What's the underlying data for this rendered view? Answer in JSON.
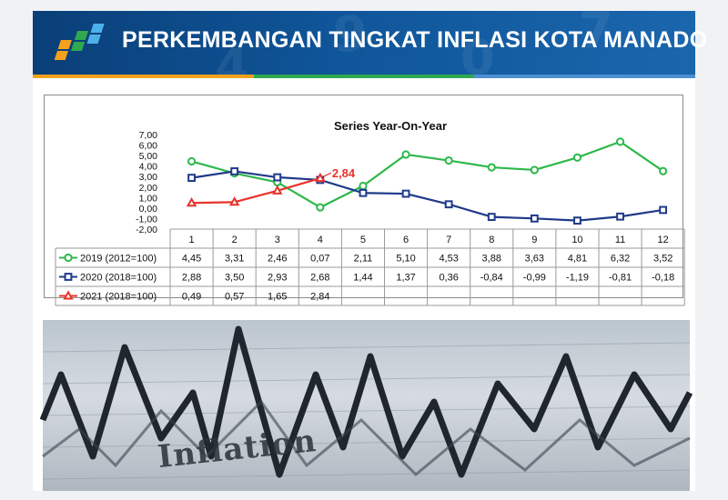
{
  "header": {
    "title": "PERKEMBANGAN TINGKAT INFLASI KOTA MANADO",
    "stripe_colors": [
      "#f5a11c",
      "#2fa84f",
      "#4d8fd1"
    ]
  },
  "chart_data": {
    "type": "line",
    "title": "Series Year-On-Year",
    "categories": [
      "1",
      "2",
      "3",
      "4",
      "5",
      "6",
      "7",
      "8",
      "9",
      "10",
      "11",
      "12"
    ],
    "y_ticks": [
      "7,00",
      "6,00",
      "5,00",
      "4,00",
      "3,00",
      "2,00",
      "1,00",
      "0,00",
      "-1,00",
      "-2,00"
    ],
    "ylim": [
      -2,
      7
    ],
    "grid": false,
    "legend": "table-left",
    "series": [
      {
        "name": "2019 (2012=100)",
        "color": "#2eb84a",
        "marker": "circle",
        "values": [
          4.45,
          3.31,
          2.46,
          0.07,
          2.11,
          5.1,
          4.53,
          3.88,
          3.63,
          4.81,
          6.32,
          3.52
        ],
        "labels": [
          "4,45",
          "3,31",
          "2,46",
          "0,07",
          "2,11",
          "5,10",
          "4,53",
          "3,88",
          "3,63",
          "4,81",
          "6,32",
          "3,52"
        ]
      },
      {
        "name": "2020 (2018=100)",
        "color": "#1f3a8a",
        "marker": "square",
        "values": [
          2.88,
          3.5,
          2.93,
          2.68,
          1.44,
          1.37,
          0.36,
          -0.84,
          -0.99,
          -1.19,
          -0.81,
          -0.18
        ],
        "labels": [
          "2,88",
          "3,50",
          "2,93",
          "2,68",
          "1,44",
          "1,37",
          "0,36",
          "-0,84",
          "-0,99",
          "-1,19",
          "-0,81",
          "-0,18"
        ]
      },
      {
        "name": "2021 (2018=100)",
        "color": "#e8332a",
        "marker": "triangle",
        "values": [
          0.49,
          0.57,
          1.65,
          2.84,
          null,
          null,
          null,
          null,
          null,
          null,
          null,
          null
        ],
        "labels": [
          "0,49",
          "0,57",
          "1,65",
          "2,84",
          "",
          "",
          "",
          "",
          "",
          "",
          "",
          ""
        ]
      }
    ],
    "annotation": {
      "text": "2,84",
      "series": 2,
      "index": 3,
      "color": "#e8332a"
    }
  },
  "photo": {
    "label": "Inflation"
  }
}
